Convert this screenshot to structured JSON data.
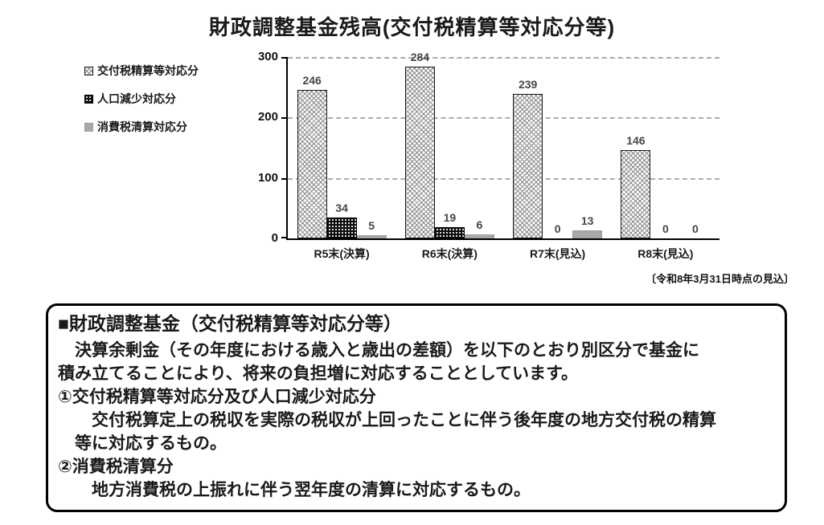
{
  "title": "財政調整基金残高(交付税精算等対応分等)",
  "chart_data": {
    "type": "bar",
    "categories": [
      "R5末(決算)",
      "R6末(決算)",
      "R7末(見込)",
      "R8末(見込)"
    ],
    "series": [
      {
        "name": "交付税精算等対応分",
        "pattern": "diagonal-crosshatch",
        "values": [
          246,
          284,
          239,
          146
        ]
      },
      {
        "name": "人口減少対応分",
        "pattern": "black-dots",
        "values": [
          34,
          19,
          0,
          0
        ]
      },
      {
        "name": "消費税清算対応分",
        "pattern": "solid-gray",
        "values": [
          5,
          6,
          13,
          0
        ]
      }
    ],
    "title": "財政調整基金残高(交付税精算等対応分等)",
    "xlabel": "",
    "ylabel": "",
    "ylim": [
      0,
      300
    ],
    "yticks": [
      0,
      100,
      200,
      300
    ],
    "grid": "horizontal dashed at 100/200/300",
    "legend_position": "left of plot, outside"
  },
  "footnote": "〔令和8年3月31日時点の見込〕",
  "info_box": {
    "heading": "■財政調整基金（交付税精算等対応分等）",
    "lines": [
      "　決算余剰金（その年度における歳入と歳出の差額）を以下のとおり別区分で基金に",
      "積み立てることにより、将来の負担増に対応することとしています。",
      "①交付税精算等対応分及び人口減少対応分",
      "　　交付税算定上の税収を実際の税収が上回ったことに伴う後年度の地方交付税の精算",
      "　等に対応するもの。",
      "②消費税清算分",
      "　　地方消費税の上振れに伴う翌年度の清算に対応するもの。"
    ]
  },
  "colors": {
    "text": "#1a1a1a",
    "grid": "#aaaaaa",
    "axis": "#000000",
    "value_label": "#454545",
    "gray_bar": "#a9a9a9",
    "dot_bar": "#0d0d0d",
    "hatch_line": "#8a8a8a"
  }
}
